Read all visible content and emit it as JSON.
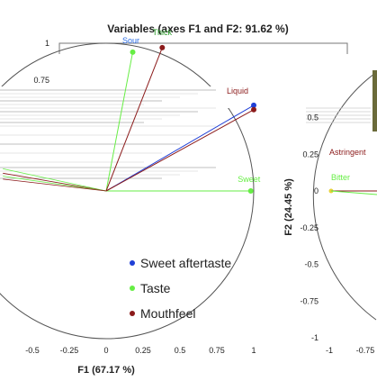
{
  "chart_data": [
    {
      "type": "scatter",
      "title": "Variables (axes F1 and F2: 91.62 %)",
      "xlabel": "F1 (67.17 %)",
      "ylabel": "",
      "xlim": [
        -0.5,
        1
      ],
      "ylim": [
        0,
        1
      ],
      "x_ticks": [
        "-0.5",
        "-0.25",
        "0",
        "0.25",
        "0.5",
        "0.75",
        "1"
      ],
      "y_ticks": [
        "0.75",
        "1"
      ],
      "correlation_circle": true,
      "series": [
        {
          "name": "Sweet aftertaste",
          "color": "#1f3fd6",
          "points": [
            {
              "label": "Sweet aftertaste",
              "x": 1.0,
              "y": 0.58
            }
          ]
        },
        {
          "name": "Taste",
          "color": "#66ee44",
          "points": [
            {
              "label": "Sour",
              "x": 0.18,
              "y": 0.94
            },
            {
              "label": "Sweet",
              "x": 0.98,
              "y": 0.0
            }
          ]
        },
        {
          "name": "Mouthfeel",
          "color": "#8b1a1a",
          "points": [
            {
              "label": "Thick",
              "x": 0.38,
              "y": 0.97
            },
            {
              "label": "Liquid",
              "x": 1.0,
              "y": 0.55
            }
          ]
        }
      ],
      "point_labels": [
        "Thick",
        "Sour",
        "Sweet",
        "Liquid"
      ],
      "legend": {
        "placement": "bottom-center",
        "entries": [
          {
            "label": "Sweet aftertaste",
            "color": "#1f3fd6"
          },
          {
            "label": "Taste",
            "color": "#66ee44"
          },
          {
            "label": "Mouthfeel",
            "color": "#8b1a1a"
          }
        ]
      }
    },
    {
      "type": "scatter",
      "title": "",
      "xlabel": "",
      "ylabel": "F2 (24.45 %)",
      "xlim": [
        -1,
        -0.75
      ],
      "ylim": [
        -1,
        0.5
      ],
      "x_ticks": [
        "-1",
        "-0.75"
      ],
      "y_ticks": [
        "0.5",
        "0.25",
        "0",
        "-0.25",
        "-0.5",
        "-0.75",
        "-1"
      ],
      "correlation_circle": true,
      "point_labels": [
        "Astringent",
        "Bitter"
      ]
    }
  ]
}
